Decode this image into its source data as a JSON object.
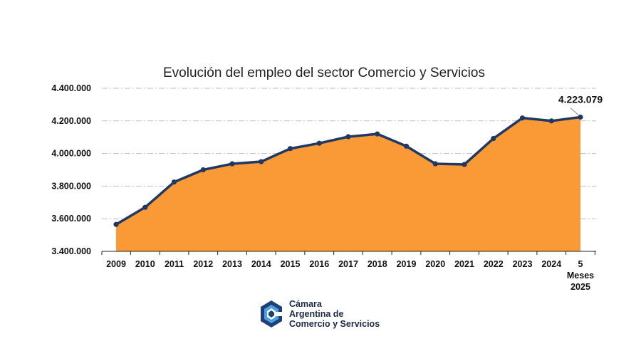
{
  "chart_data": {
    "type": "area",
    "title": "Evolución del empleo del sector Comercio y Servicios",
    "categories": [
      "2009",
      "2010",
      "2011",
      "2012",
      "2013",
      "2014",
      "2015",
      "2016",
      "2017",
      "2018",
      "2019",
      "2020",
      "2021",
      "2022",
      "2023",
      "2024",
      "5|Meses|2025"
    ],
    "values": [
      3565000,
      3670000,
      3825000,
      3900000,
      3937000,
      3950000,
      4030000,
      4063000,
      4103000,
      4120000,
      4045000,
      3937000,
      3933000,
      4092000,
      4218000,
      4200000,
      4223079
    ],
    "ylim": [
      3400000,
      4400000
    ],
    "yticks": [
      "3.400.000",
      "3.600.000",
      "3.800.000",
      "4.000.000",
      "4.200.000",
      "4.400.000"
    ],
    "ytick_values": [
      3400000,
      3600000,
      3800000,
      4000000,
      4200000,
      4400000
    ],
    "data_label": "4.223.079",
    "grid": true,
    "colors": {
      "fill": "#f99a36",
      "line": "#1f3864",
      "grid": "#bfbfbf"
    }
  },
  "logo": {
    "line1": "Cámara",
    "line2": "Argentina de",
    "line3": "Comercio y Servicios"
  }
}
